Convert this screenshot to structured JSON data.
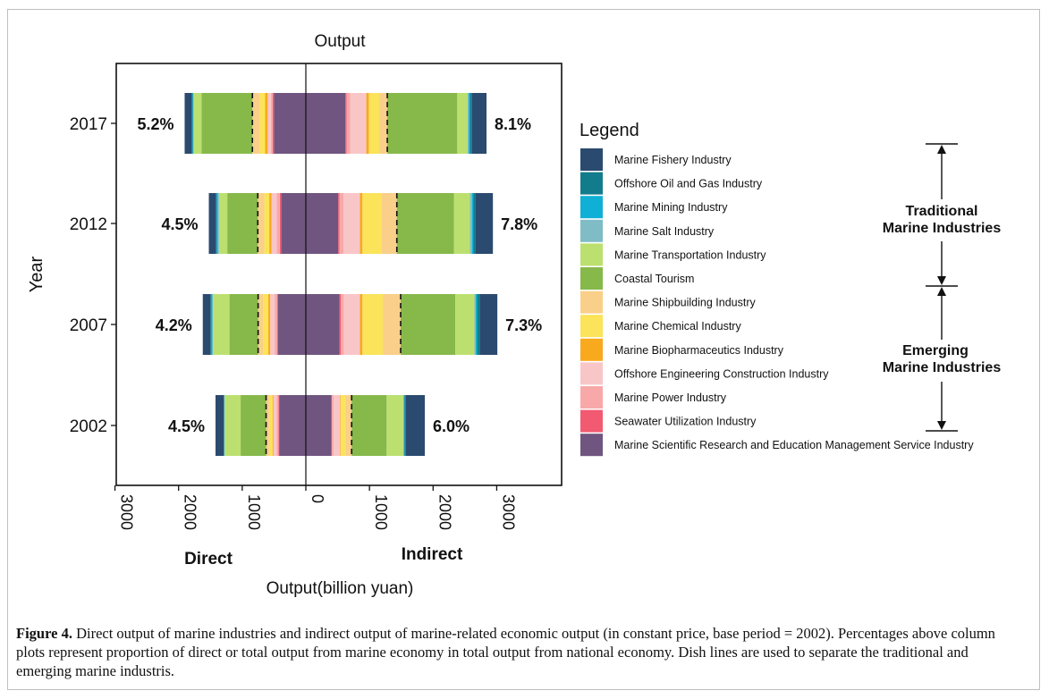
{
  "chart_data": {
    "type": "bar",
    "orientation": "horizontal",
    "stacked": true,
    "diverging": true,
    "title": "Output",
    "xlabel": "Output(billion yuan)",
    "ylabel": "Year",
    "side_labels": {
      "left": "Direct",
      "right": "Indirect"
    },
    "xlim": [
      -3500,
      3500
    ],
    "x_ticks": [
      -3000,
      -2000,
      -1000,
      0,
      1000,
      2000,
      3000
    ],
    "x_tick_labels": [
      "3000",
      "2000",
      "1000",
      "0",
      "1000",
      "2000",
      "3000"
    ],
    "categories": [
      "2017",
      "2012",
      "2007",
      "2002"
    ],
    "industries": [
      {
        "name": "Marine Fishery Industry",
        "color": "#2B4A6F",
        "group": "traditional"
      },
      {
        "name": "Offshore Oil and Gas Industry",
        "color": "#137C8C",
        "group": "traditional"
      },
      {
        "name": "Marine Mining Industry",
        "color": "#10B0D6",
        "group": "traditional"
      },
      {
        "name": "Marine Salt Industry",
        "color": "#80BCC5",
        "group": "traditional"
      },
      {
        "name": "Marine Transportation Industry",
        "color": "#BCE06F",
        "group": "traditional"
      },
      {
        "name": "Coastal Tourism",
        "color": "#86B84A",
        "group": "traditional"
      },
      {
        "name": "Marine Shipbuilding Industry",
        "color": "#F9CF8A",
        "group": "emerging"
      },
      {
        "name": "Marine Chemical Industry",
        "color": "#FBE35A",
        "group": "emerging"
      },
      {
        "name": "Marine Biopharmaceutics Industry",
        "color": "#F9A91E",
        "group": "emerging"
      },
      {
        "name": "Offshore Engineering Construction Industry",
        "color": "#F9C6C8",
        "group": "emerging"
      },
      {
        "name": "Marine Power Industry",
        "color": "#F8A8A8",
        "group": "emerging"
      },
      {
        "name": "Seawater Utilization Industry",
        "color": "#F25A72",
        "group": "emerging"
      },
      {
        "name": "Marine Scientific Research and Education Management Service Industry",
        "color": "#6F557F",
        "group": "emerging"
      }
    ],
    "stack_order_from_center": [
      12,
      11,
      10,
      9,
      8,
      7,
      6,
      5,
      4,
      3,
      2,
      1,
      0
    ],
    "direct_values": {
      "2017": [
        110,
        15,
        10,
        10,
        120,
        800,
        110,
        90,
        40,
        50,
        30,
        20,
        500
      ],
      "2012": [
        110,
        15,
        15,
        20,
        130,
        480,
        100,
        80,
        35,
        80,
        50,
        20,
        390
      ],
      "2007": [
        120,
        15,
        15,
        10,
        260,
        450,
        80,
        80,
        30,
        70,
        40,
        10,
        440
      ],
      "2002": [
        130,
        5,
        5,
        5,
        250,
        400,
        60,
        40,
        15,
        50,
        30,
        10,
        420
      ]
    },
    "indirect_values": {
      "2017": [
        230,
        30,
        20,
        20,
        160,
        1100,
        120,
        170,
        40,
        250,
        60,
        20,
        620
      ],
      "2012": [
        270,
        40,
        20,
        30,
        250,
        900,
        240,
        300,
        40,
        260,
        60,
        20,
        510
      ],
      "2007": [
        280,
        40,
        20,
        20,
        300,
        860,
        280,
        320,
        40,
        250,
        50,
        20,
        530
      ],
      "2002": [
        300,
        20,
        10,
        10,
        260,
        550,
        100,
        70,
        10,
        100,
        30,
        10,
        400
      ]
    },
    "direct_percent_labels": {
      "2017": "5.2%",
      "2012": "4.5%",
      "2007": "4.2%",
      "2002": "4.5%"
    },
    "indirect_percent_labels": {
      "2017": "8.1%",
      "2012": "7.8%",
      "2007": "7.3%",
      "2002": "6.0%"
    },
    "legend_title": "Legend",
    "legend_position": "right",
    "group_labels": {
      "traditional": [
        "Traditional",
        "Marine Industries"
      ],
      "emerging": [
        "Emerging",
        "Marine Industries"
      ]
    },
    "grid": false
  },
  "caption": {
    "label": "Figure 4.",
    "text": " Direct output of marine industries and indirect output of marine-related economic output (in constant price, base period = 2002). Percentages above column plots represent proportion of direct or total output from marine economy in total output from national economy. Dish lines are used to separate the traditional and emerging marine industris."
  }
}
